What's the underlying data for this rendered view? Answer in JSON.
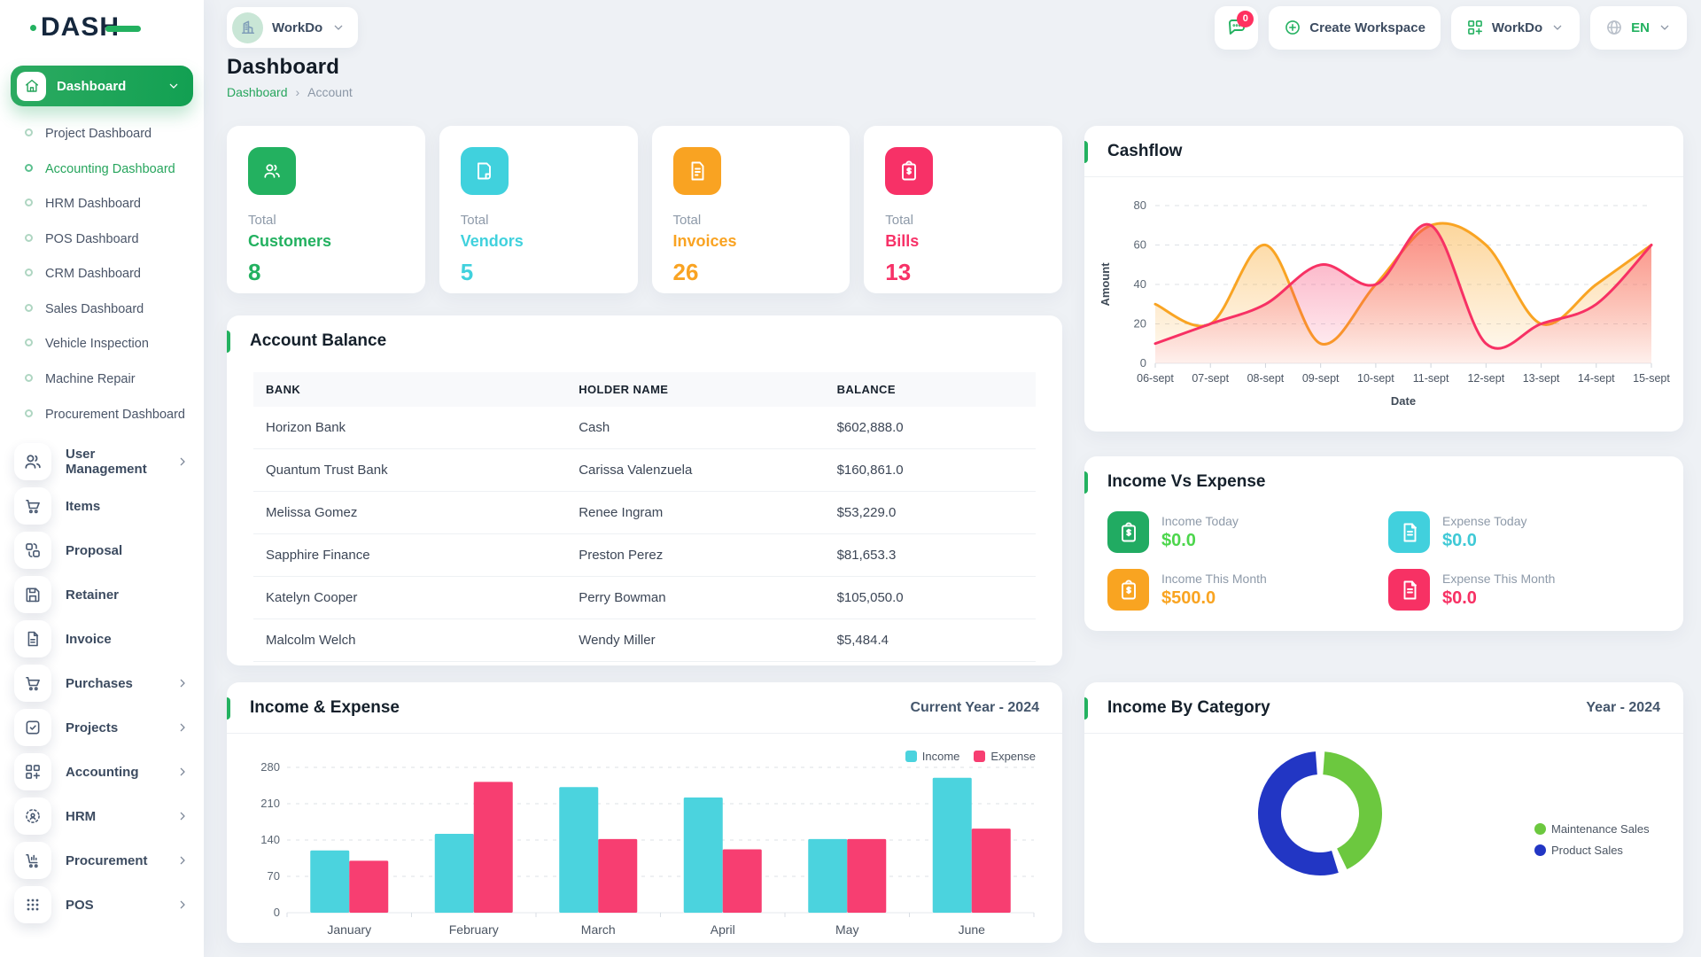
{
  "brand": {
    "name": "DASH"
  },
  "topbar": {
    "workspace": {
      "label": "WorkDo"
    },
    "messages_badge": "0",
    "create_workspace_label": "Create Workspace",
    "apps_label": "WorkDo",
    "language": "EN"
  },
  "sidebar": {
    "dashboard": {
      "label": "Dashboard"
    },
    "dashboard_children": [
      {
        "label": "Project Dashboard",
        "active": false
      },
      {
        "label": "Accounting Dashboard",
        "active": true
      },
      {
        "label": "HRM Dashboard",
        "active": false
      },
      {
        "label": "POS Dashboard",
        "active": false
      },
      {
        "label": "CRM Dashboard",
        "active": false
      },
      {
        "label": "Sales Dashboard",
        "active": false
      },
      {
        "label": "Vehicle Inspection",
        "active": false
      },
      {
        "label": "Machine Repair",
        "active": false
      },
      {
        "label": "Procurement Dashboard",
        "active": false
      }
    ],
    "items": [
      {
        "label": "User Management",
        "icon": "users",
        "chevron": true
      },
      {
        "label": "Items",
        "icon": "cart",
        "chevron": false
      },
      {
        "label": "Proposal",
        "icon": "proposal",
        "chevron": false
      },
      {
        "label": "Retainer",
        "icon": "save",
        "chevron": false
      },
      {
        "label": "Invoice",
        "icon": "file",
        "chevron": false
      },
      {
        "label": "Purchases",
        "icon": "cart",
        "chevron": true
      },
      {
        "label": "Projects",
        "icon": "check-square",
        "chevron": true
      },
      {
        "label": "Accounting",
        "icon": "grid-plus",
        "chevron": true
      },
      {
        "label": "HRM",
        "icon": "hrm",
        "chevron": true
      },
      {
        "label": "Procurement",
        "icon": "cart-chart",
        "chevron": true
      },
      {
        "label": "POS",
        "icon": "dots-grid",
        "chevron": true
      }
    ]
  },
  "page": {
    "title": "Dashboard",
    "breadcrumb": {
      "home": "Dashboard",
      "separator": "›",
      "current": "Account"
    }
  },
  "stats": [
    {
      "total_label": "Total",
      "label": "Customers",
      "value": "8",
      "color": "#23b160",
      "icon": "users"
    },
    {
      "total_label": "Total",
      "label": "Vendors",
      "value": "5",
      "color": "#40d1dd",
      "icon": "note"
    },
    {
      "total_label": "Total",
      "label": "Invoices",
      "value": "26",
      "color": "#f9a322",
      "icon": "invoice"
    },
    {
      "total_label": "Total",
      "label": "Bills",
      "value": "13",
      "color": "#f73167",
      "icon": "clipboard-dollar"
    }
  ],
  "account_balance": {
    "title": "Account Balance",
    "columns": [
      "BANK",
      "HOLDER NAME",
      "BALANCE"
    ],
    "rows": [
      {
        "bank": "Horizon Bank",
        "holder": "Cash",
        "balance": "$602,888.0"
      },
      {
        "bank": "Quantum Trust Bank",
        "holder": "Carissa Valenzuela",
        "balance": "$160,861.0"
      },
      {
        "bank": "Melissa Gomez",
        "holder": "Renee Ingram",
        "balance": "$53,229.0"
      },
      {
        "bank": "Sapphire Finance",
        "holder": "Preston Perez",
        "balance": "$81,653.3"
      },
      {
        "bank": "Katelyn Cooper",
        "holder": "Perry Bowman",
        "balance": "$105,050.0"
      },
      {
        "bank": "Malcolm Welch",
        "holder": "Wendy Miller",
        "balance": "$5,484.4"
      }
    ]
  },
  "income_vs_expense": {
    "title": "Income Vs Expense",
    "tiles": [
      {
        "label": "Income Today",
        "value": "$0.0",
        "tile_color": "#21ab62",
        "value_color": "#4cd64c",
        "icon": "clipboard-dollar"
      },
      {
        "label": "Expense Today",
        "value": "$0.0",
        "tile_color": "#41d0dd",
        "value_color": "#3fc9d6",
        "icon": "file-lines"
      },
      {
        "label": "Income This Month",
        "value": "$500.0",
        "tile_color": "#f9a421",
        "value_color": "#f9a421",
        "icon": "clipboard-dollar"
      },
      {
        "label": "Expense This Month",
        "value": "$0.0",
        "tile_color": "#f73164",
        "value_color": "#f73164",
        "icon": "file-lines"
      }
    ]
  },
  "chart_data": [
    {
      "id": "cashflow",
      "type": "area",
      "title": "Cashflow",
      "x": [
        "06-sept",
        "07-sept",
        "08-sept",
        "09-sept",
        "10-sept",
        "11-sept",
        "12-sept",
        "13-sept",
        "14-sept",
        "15-sept"
      ],
      "xlabel": "Date",
      "ylabel": "Amount",
      "ylim": [
        0,
        80
      ],
      "yticks": [
        0,
        20,
        40,
        60,
        80
      ],
      "grid": "dashed-horizontal",
      "legend": "none",
      "series": [
        {
          "name": "series-orange",
          "color": "#f9a423",
          "values": [
            30,
            20,
            60,
            10,
            40,
            70,
            60,
            20,
            40,
            60
          ]
        },
        {
          "name": "series-pink",
          "color": "#f73164",
          "values": [
            10,
            20,
            30,
            50,
            40,
            70,
            10,
            20,
            30,
            60
          ]
        }
      ]
    },
    {
      "id": "income_expense",
      "type": "bar",
      "title": "Income & Expense",
      "subtitle": "Current Year - 2024",
      "categories": [
        "January",
        "February",
        "March",
        "April",
        "May",
        "June"
      ],
      "ylim": [
        0,
        280
      ],
      "yticks": [
        0,
        70,
        140,
        210,
        280
      ],
      "grid": "dashed-horizontal",
      "legend_position": "top-right",
      "series": [
        {
          "name": "Income",
          "color": "#4bd3de",
          "values": [
            120,
            152,
            242,
            222,
            142,
            260
          ]
        },
        {
          "name": "Expense",
          "color": "#f73e71",
          "values": [
            100,
            252,
            142,
            122,
            142,
            162
          ]
        }
      ]
    },
    {
      "id": "income_by_category",
      "type": "donut",
      "title": "Income By Category",
      "subtitle": "Year - 2024",
      "legend_position": "right",
      "slices": [
        {
          "name": "Maintenance Sales",
          "color": "#6cc83f",
          "percent": 44
        },
        {
          "name": "Product Sales",
          "color": "#2236c4",
          "percent": 56
        }
      ]
    }
  ]
}
